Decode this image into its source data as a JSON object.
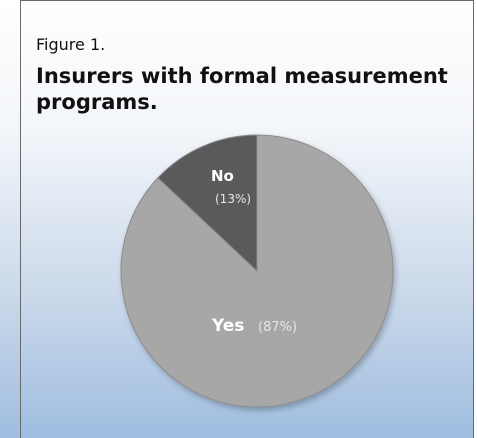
{
  "figure": {
    "label": "Figure 1.",
    "title": "Insurers with formal measurement programs."
  },
  "chart_data": {
    "type": "pie",
    "title": "Insurers with formal measurement programs.",
    "slices": [
      {
        "label": "Yes",
        "value": 87,
        "value_label": "(87%)",
        "color": "#a7a7a7"
      },
      {
        "label": "No",
        "value": 13,
        "value_label": "(13%)",
        "color": "#5a5a5a"
      }
    ],
    "start_angle_deg": 0,
    "direction": "clockwise",
    "legend": "none"
  }
}
